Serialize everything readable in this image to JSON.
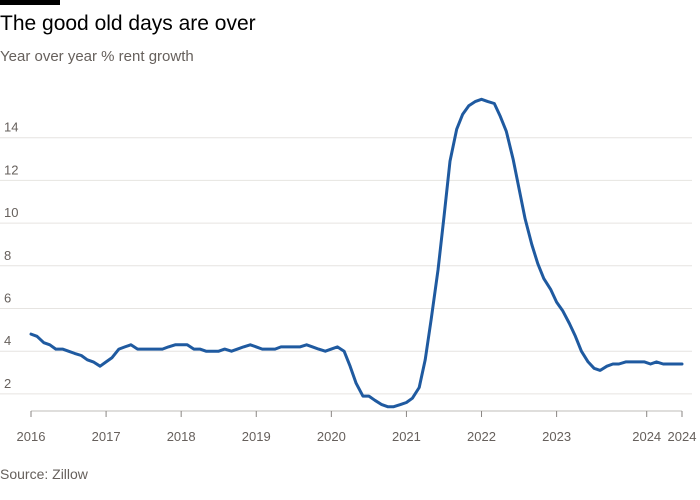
{
  "chart_data": {
    "type": "line",
    "title": "The good old days are over",
    "subtitle": "Year over year % rent growth",
    "source": "Source: Zillow",
    "xlabel": "",
    "ylabel": "",
    "ylim": [
      1.2,
      16
    ],
    "xlim": [
      2016.0,
      2024.67
    ],
    "y_ticks": [
      2,
      4,
      6,
      8,
      10,
      12,
      14
    ],
    "x_ticks": [
      {
        "value": 2016,
        "label": "2016"
      },
      {
        "value": 2017,
        "label": "2017"
      },
      {
        "value": 2018,
        "label": "2018"
      },
      {
        "value": 2019,
        "label": "2019"
      },
      {
        "value": 2020,
        "label": "2020"
      },
      {
        "value": 2021,
        "label": "2021"
      },
      {
        "value": 2022,
        "label": "2022"
      },
      {
        "value": 2023,
        "label": "2023"
      },
      {
        "value": 2024.2,
        "label": "2024"
      },
      {
        "value": 2024.67,
        "label": "2024"
      }
    ],
    "grid": true,
    "series": [
      {
        "name": "Year over year % rent growth",
        "color": "#1f5aa0",
        "x": [
          2016.0,
          2016.08,
          2016.17,
          2016.25,
          2016.33,
          2016.42,
          2016.5,
          2016.58,
          2016.67,
          2016.75,
          2016.83,
          2016.92,
          2017.0,
          2017.08,
          2017.17,
          2017.25,
          2017.33,
          2017.42,
          2017.5,
          2017.58,
          2017.67,
          2017.75,
          2017.83,
          2017.92,
          2018.0,
          2018.08,
          2018.17,
          2018.25,
          2018.33,
          2018.42,
          2018.5,
          2018.58,
          2018.67,
          2018.75,
          2018.83,
          2018.92,
          2019.0,
          2019.08,
          2019.17,
          2019.25,
          2019.33,
          2019.42,
          2019.5,
          2019.58,
          2019.67,
          2019.75,
          2019.83,
          2019.92,
          2020.0,
          2020.08,
          2020.17,
          2020.25,
          2020.33,
          2020.42,
          2020.5,
          2020.58,
          2020.67,
          2020.75,
          2020.83,
          2020.92,
          2021.0,
          2021.08,
          2021.17,
          2021.25,
          2021.33,
          2021.42,
          2021.5,
          2021.58,
          2021.67,
          2021.75,
          2021.83,
          2021.92,
          2022.0,
          2022.08,
          2022.17,
          2022.25,
          2022.33,
          2022.42,
          2022.5,
          2022.58,
          2022.67,
          2022.75,
          2022.83,
          2022.92,
          2023.0,
          2023.08,
          2023.17,
          2023.25,
          2023.33,
          2023.42,
          2023.5,
          2023.58,
          2023.67,
          2023.75,
          2023.83,
          2023.92,
          2024.0,
          2024.08,
          2024.17,
          2024.25,
          2024.33,
          2024.42,
          2024.5,
          2024.58,
          2024.67
        ],
        "values": [
          4.8,
          4.7,
          4.4,
          4.3,
          4.1,
          4.1,
          4.0,
          3.9,
          3.8,
          3.6,
          3.5,
          3.3,
          3.5,
          3.7,
          4.1,
          4.2,
          4.3,
          4.1,
          4.1,
          4.1,
          4.1,
          4.1,
          4.2,
          4.3,
          4.3,
          4.3,
          4.1,
          4.1,
          4.0,
          4.0,
          4.0,
          4.1,
          4.0,
          4.1,
          4.2,
          4.3,
          4.2,
          4.1,
          4.1,
          4.1,
          4.2,
          4.2,
          4.2,
          4.2,
          4.3,
          4.2,
          4.1,
          4.0,
          4.1,
          4.2,
          4.0,
          3.3,
          2.5,
          1.9,
          1.9,
          1.7,
          1.5,
          1.4,
          1.4,
          1.5,
          1.6,
          1.8,
          2.3,
          3.6,
          5.5,
          7.8,
          10.3,
          12.9,
          14.4,
          15.1,
          15.5,
          15.7,
          15.8,
          15.7,
          15.6,
          15.0,
          14.3,
          13.0,
          11.6,
          10.2,
          9.0,
          8.1,
          7.4,
          6.9,
          6.3,
          5.9,
          5.3,
          4.7,
          4.0,
          3.5,
          3.2,
          3.1,
          3.3,
          3.4,
          3.4,
          3.5,
          3.5,
          3.5,
          3.5,
          3.4,
          3.5,
          3.4,
          3.4,
          3.4,
          3.4
        ]
      }
    ]
  }
}
